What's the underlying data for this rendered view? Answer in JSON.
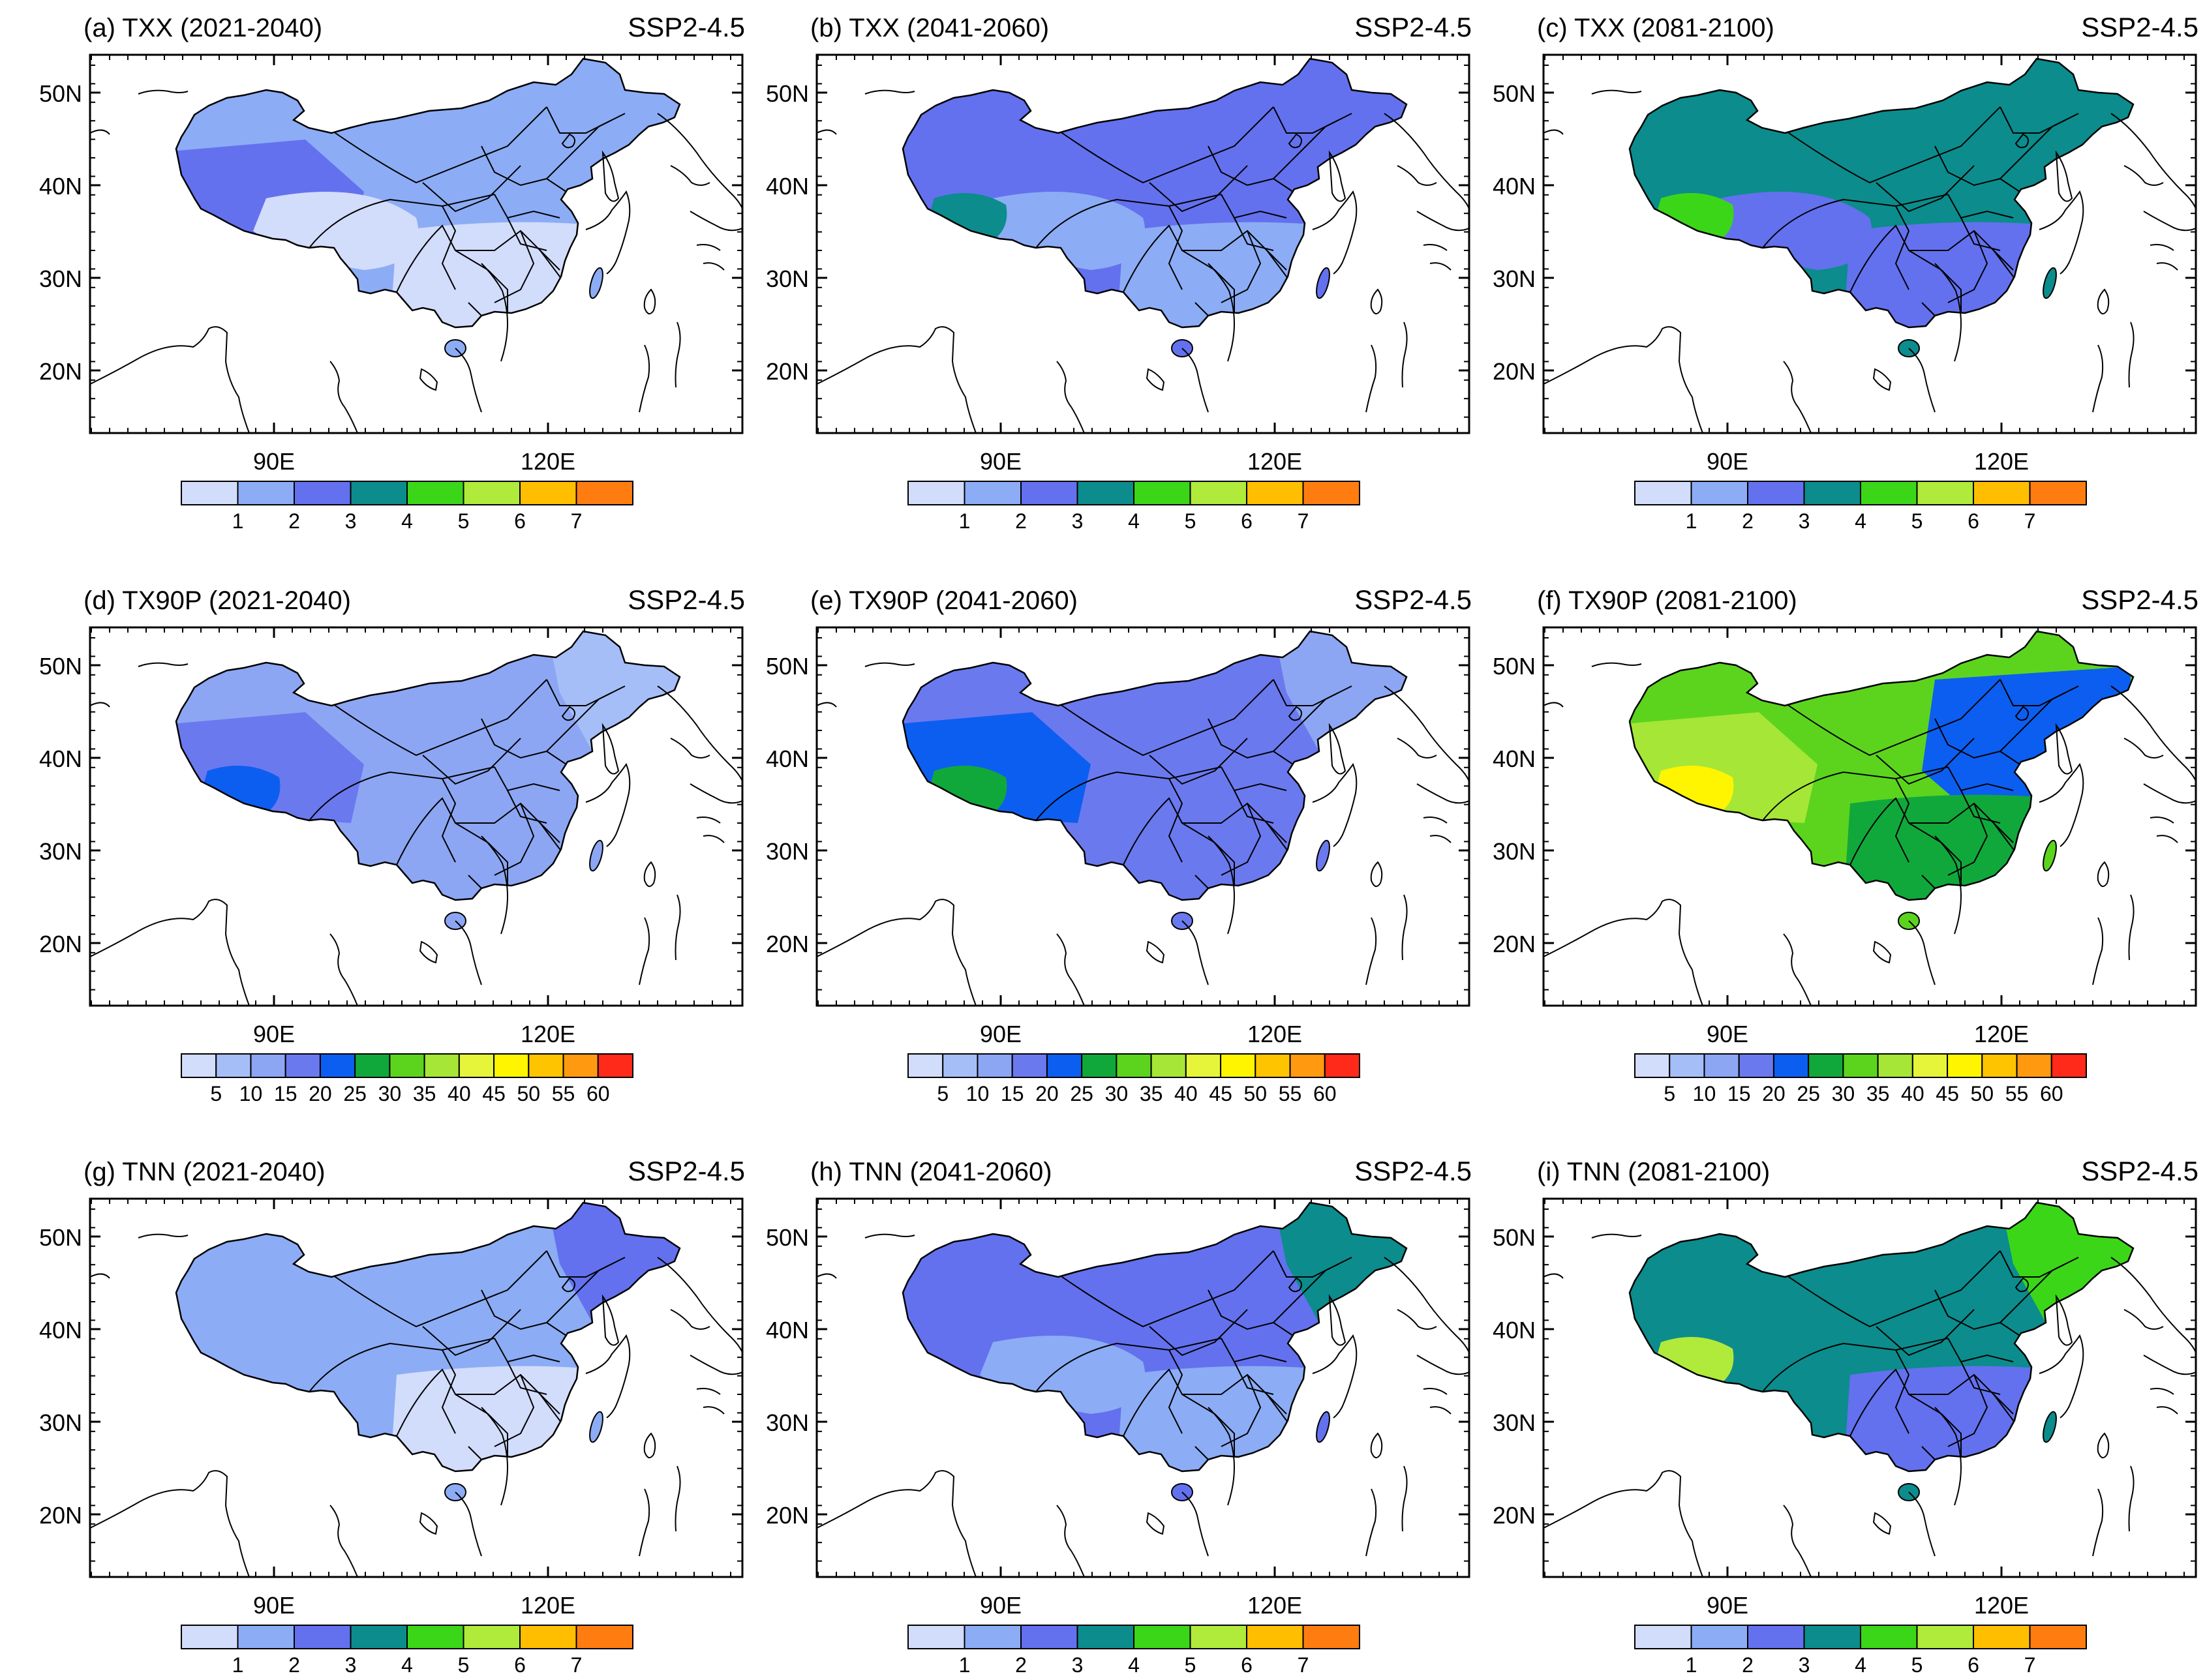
{
  "figure": {
    "lat_ticks": [
      "50N",
      "40N",
      "30N",
      "20N"
    ],
    "lon_ticks": [
      "90E",
      "120E"
    ],
    "colorbars": {
      "txx": {
        "labels": [
          "1",
          "2",
          "3",
          "4",
          "5",
          "6",
          "7"
        ],
        "colors": [
          "#d2dcfb",
          "#8cacf5",
          "#6371ee",
          "#0c8c8c",
          "#3cd619",
          "#b0ea3a",
          "#ffbe00",
          "#ff7d10"
        ]
      },
      "tx90p": {
        "labels": [
          "5",
          "10",
          "15",
          "20",
          "25",
          "30",
          "35",
          "40",
          "45",
          "50",
          "55",
          "60"
        ],
        "colors": [
          "#d2dcfb",
          "#a6bef8",
          "#8ca6f3",
          "#6b79ef",
          "#0c5ef0",
          "#11a83b",
          "#5cd41e",
          "#a6e636",
          "#e6f53a",
          "#fff500",
          "#ffc400",
          "#ff9a10",
          "#ff2a1a"
        ]
      },
      "tnn": {
        "labels": [
          "1",
          "2",
          "3",
          "4",
          "5",
          "6",
          "7"
        ],
        "colors": [
          "#d2dcfb",
          "#8cacf5",
          "#6371ee",
          "#0c8c8c",
          "#3cd619",
          "#b0ea3a",
          "#ffbe00",
          "#ff7d10"
        ]
      }
    },
    "panels": [
      {
        "id": "a",
        "title": "(a) TXX (2021-2040)",
        "scenario": "SSP2-4.5",
        "colorbar": "txx",
        "base": "#8cacf5",
        "patches": [
          {
            "shape": "west",
            "color": "#6371ee"
          },
          {
            "shape": "south",
            "color": "#d2dcfb"
          },
          {
            "shape": "tibet",
            "color": "#d2dcfb"
          }
        ]
      },
      {
        "id": "b",
        "title": "(b) TXX (2041-2060)",
        "scenario": "SSP2-4.5",
        "colorbar": "txx",
        "base": "#6371ee",
        "patches": [
          {
            "shape": "tibet",
            "color": "#8cacf5"
          },
          {
            "shape": "south",
            "color": "#8cacf5"
          },
          {
            "shape": "spot",
            "color": "#0c8c8c"
          }
        ]
      },
      {
        "id": "c",
        "title": "(c) TXX (2081-2100)",
        "scenario": "SSP2-4.5",
        "colorbar": "txx",
        "base": "#0c8c8c",
        "patches": [
          {
            "shape": "tibet",
            "color": "#6371ee"
          },
          {
            "shape": "south",
            "color": "#6371ee"
          },
          {
            "shape": "spot",
            "color": "#3cd619"
          }
        ]
      },
      {
        "id": "d",
        "title": "(d) TX90P (2021-2040)",
        "scenario": "SSP2-4.5",
        "colorbar": "tx90p",
        "base": "#8ca6f3",
        "patches": [
          {
            "shape": "west",
            "color": "#6b79ef"
          },
          {
            "shape": "spot",
            "color": "#0c5ef0"
          },
          {
            "shape": "northeast",
            "color": "#a6bef8"
          }
        ]
      },
      {
        "id": "e",
        "title": "(e) TX90P (2041-2060)",
        "scenario": "SSP2-4.5",
        "colorbar": "tx90p",
        "base": "#6b79ef",
        "patches": [
          {
            "shape": "west",
            "color": "#0c5ef0"
          },
          {
            "shape": "spot",
            "color": "#11a83b"
          },
          {
            "shape": "northeast",
            "color": "#8ca6f3"
          }
        ]
      },
      {
        "id": "f",
        "title": "(f) TX90P (2081-2100)",
        "scenario": "SSP2-4.5",
        "colorbar": "tx90p",
        "base": "#5cd41e",
        "patches": [
          {
            "shape": "west",
            "color": "#a6e636"
          },
          {
            "shape": "spot",
            "color": "#fff500"
          },
          {
            "shape": "east",
            "color": "#0c5ef0"
          },
          {
            "shape": "south",
            "color": "#11a83b"
          }
        ]
      },
      {
        "id": "g",
        "title": "(g) TNN (2021-2040)",
        "scenario": "SSP2-4.5",
        "colorbar": "tnn",
        "base": "#8cacf5",
        "patches": [
          {
            "shape": "south",
            "color": "#d2dcfb"
          },
          {
            "shape": "northeast",
            "color": "#6371ee"
          }
        ]
      },
      {
        "id": "h",
        "title": "(h) TNN (2041-2060)",
        "scenario": "SSP2-4.5",
        "colorbar": "tnn",
        "base": "#6371ee",
        "patches": [
          {
            "shape": "tibet",
            "color": "#8cacf5"
          },
          {
            "shape": "south",
            "color": "#8cacf5"
          },
          {
            "shape": "northeast",
            "color": "#0c8c8c"
          }
        ]
      },
      {
        "id": "i",
        "title": "(i) TNN (2081-2100)",
        "scenario": "SSP2-4.5",
        "colorbar": "tnn",
        "base": "#0c8c8c",
        "patches": [
          {
            "shape": "south",
            "color": "#6371ee"
          },
          {
            "shape": "northeast",
            "color": "#3cd619"
          },
          {
            "shape": "spot",
            "color": "#b0ea3a"
          }
        ]
      }
    ]
  }
}
